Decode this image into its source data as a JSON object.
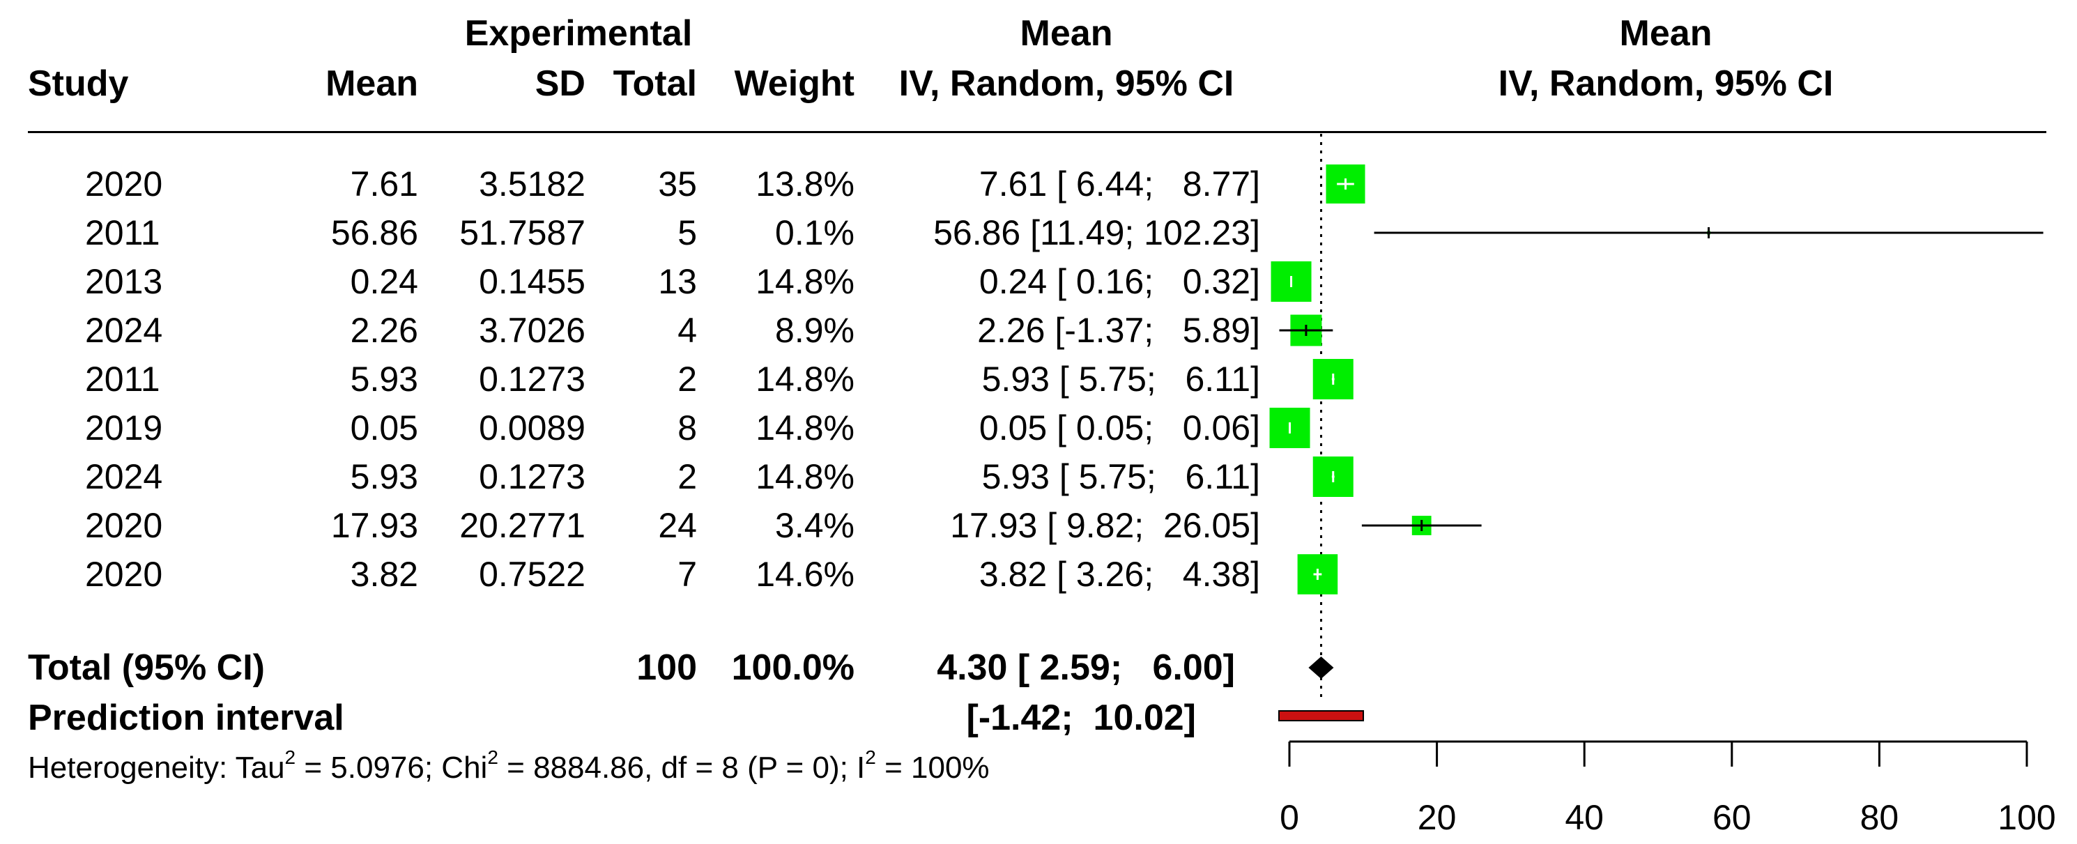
{
  "header": {
    "study": "Study",
    "group": "Experimental",
    "mean": "Mean",
    "sd": "SD",
    "total": "Total",
    "weight": "Weight",
    "effect_title": "Mean",
    "effect_method": "IV, Random, 95% CI",
    "plot_title": "Mean",
    "plot_method": "IV, Random, 95% CI"
  },
  "rows": [
    {
      "study": "2020",
      "mean": "7.61",
      "sd": "3.5182",
      "total": "35",
      "weight": "13.8%",
      "ci_text": "7.61 [ 6.44;   8.77]"
    },
    {
      "study": "2011",
      "mean": "56.86",
      "sd": "51.7587",
      "total": "5",
      "weight": "0.1%",
      "ci_text": "56.86 [11.49; 102.23]"
    },
    {
      "study": "2013",
      "mean": "0.24",
      "sd": "0.1455",
      "total": "13",
      "weight": "14.8%",
      "ci_text": "0.24 [ 0.16;   0.32]"
    },
    {
      "study": "2024",
      "mean": "2.26",
      "sd": "3.7026",
      "total": "4",
      "weight": "8.9%",
      "ci_text": "2.26 [-1.37;   5.89]"
    },
    {
      "study": "2011",
      "mean": "5.93",
      "sd": "0.1273",
      "total": "2",
      "weight": "14.8%",
      "ci_text": "5.93 [ 5.75;   6.11]"
    },
    {
      "study": "2019",
      "mean": "0.05",
      "sd": "0.0089",
      "total": "8",
      "weight": "14.8%",
      "ci_text": "0.05 [ 0.05;   0.06]"
    },
    {
      "study": "2024",
      "mean": "5.93",
      "sd": "0.1273",
      "total": "2",
      "weight": "14.8%",
      "ci_text": "5.93 [ 5.75;   6.11]"
    },
    {
      "study": "2020",
      "mean": "17.93",
      "sd": "20.2771",
      "total": "24",
      "weight": "3.4%",
      "ci_text": "17.93 [ 9.82;  26.05]"
    },
    {
      "study": "2020",
      "mean": "3.82",
      "sd": "0.7522",
      "total": "7",
      "weight": "14.6%",
      "ci_text": "3.82 [ 3.26;   4.38]"
    }
  ],
  "total_row": {
    "label": "Total (95% CI)",
    "total": "100",
    "weight": "100.0%",
    "ci_text": "4.30 [ 2.59;   6.00]"
  },
  "prediction": {
    "label": "Prediction interval",
    "ci_text": "[-1.42;  10.02]"
  },
  "heterogeneity": {
    "prefix": "Heterogeneity: Tau",
    "tau2": "5.0976",
    "chi_label": "; Chi",
    "chi2": "8884.86",
    "df_p": ", df = 8 (P = 0); I",
    "i2": "100%",
    "sq": "2",
    "eq": " = "
  },
  "chart_data": {
    "type": "forest",
    "xlim": [
      0,
      100
    ],
    "ticks": [
      0,
      20,
      40,
      60,
      80,
      100
    ],
    "tick_labels": [
      "0",
      "20",
      "40",
      "60",
      "80",
      "100"
    ],
    "reference_line": 4.3,
    "studies": [
      {
        "mean": 7.61,
        "lower": 6.44,
        "upper": 8.77,
        "weight": 13.8
      },
      {
        "mean": 56.86,
        "lower": 11.49,
        "upper": 102.23,
        "weight": 0.1
      },
      {
        "mean": 0.24,
        "lower": 0.16,
        "upper": 0.32,
        "weight": 14.8
      },
      {
        "mean": 2.26,
        "lower": -1.37,
        "upper": 5.89,
        "weight": 8.9
      },
      {
        "mean": 5.93,
        "lower": 5.75,
        "upper": 6.11,
        "weight": 14.8
      },
      {
        "mean": 0.05,
        "lower": 0.05,
        "upper": 0.06,
        "weight": 14.8
      },
      {
        "mean": 5.93,
        "lower": 5.75,
        "upper": 6.11,
        "weight": 14.8
      },
      {
        "mean": 17.93,
        "lower": 9.82,
        "upper": 26.05,
        "weight": 3.4
      },
      {
        "mean": 3.82,
        "lower": 3.26,
        "upper": 4.38,
        "weight": 14.6
      }
    ],
    "pooled": {
      "mean": 4.3,
      "lower": 2.59,
      "upper": 6.0
    },
    "prediction_interval": {
      "lower": -1.42,
      "upper": 10.02
    },
    "colors": {
      "box": "#00ee00",
      "diamond": "#000000",
      "prediction": "#cc1111",
      "line": "#000000"
    }
  }
}
